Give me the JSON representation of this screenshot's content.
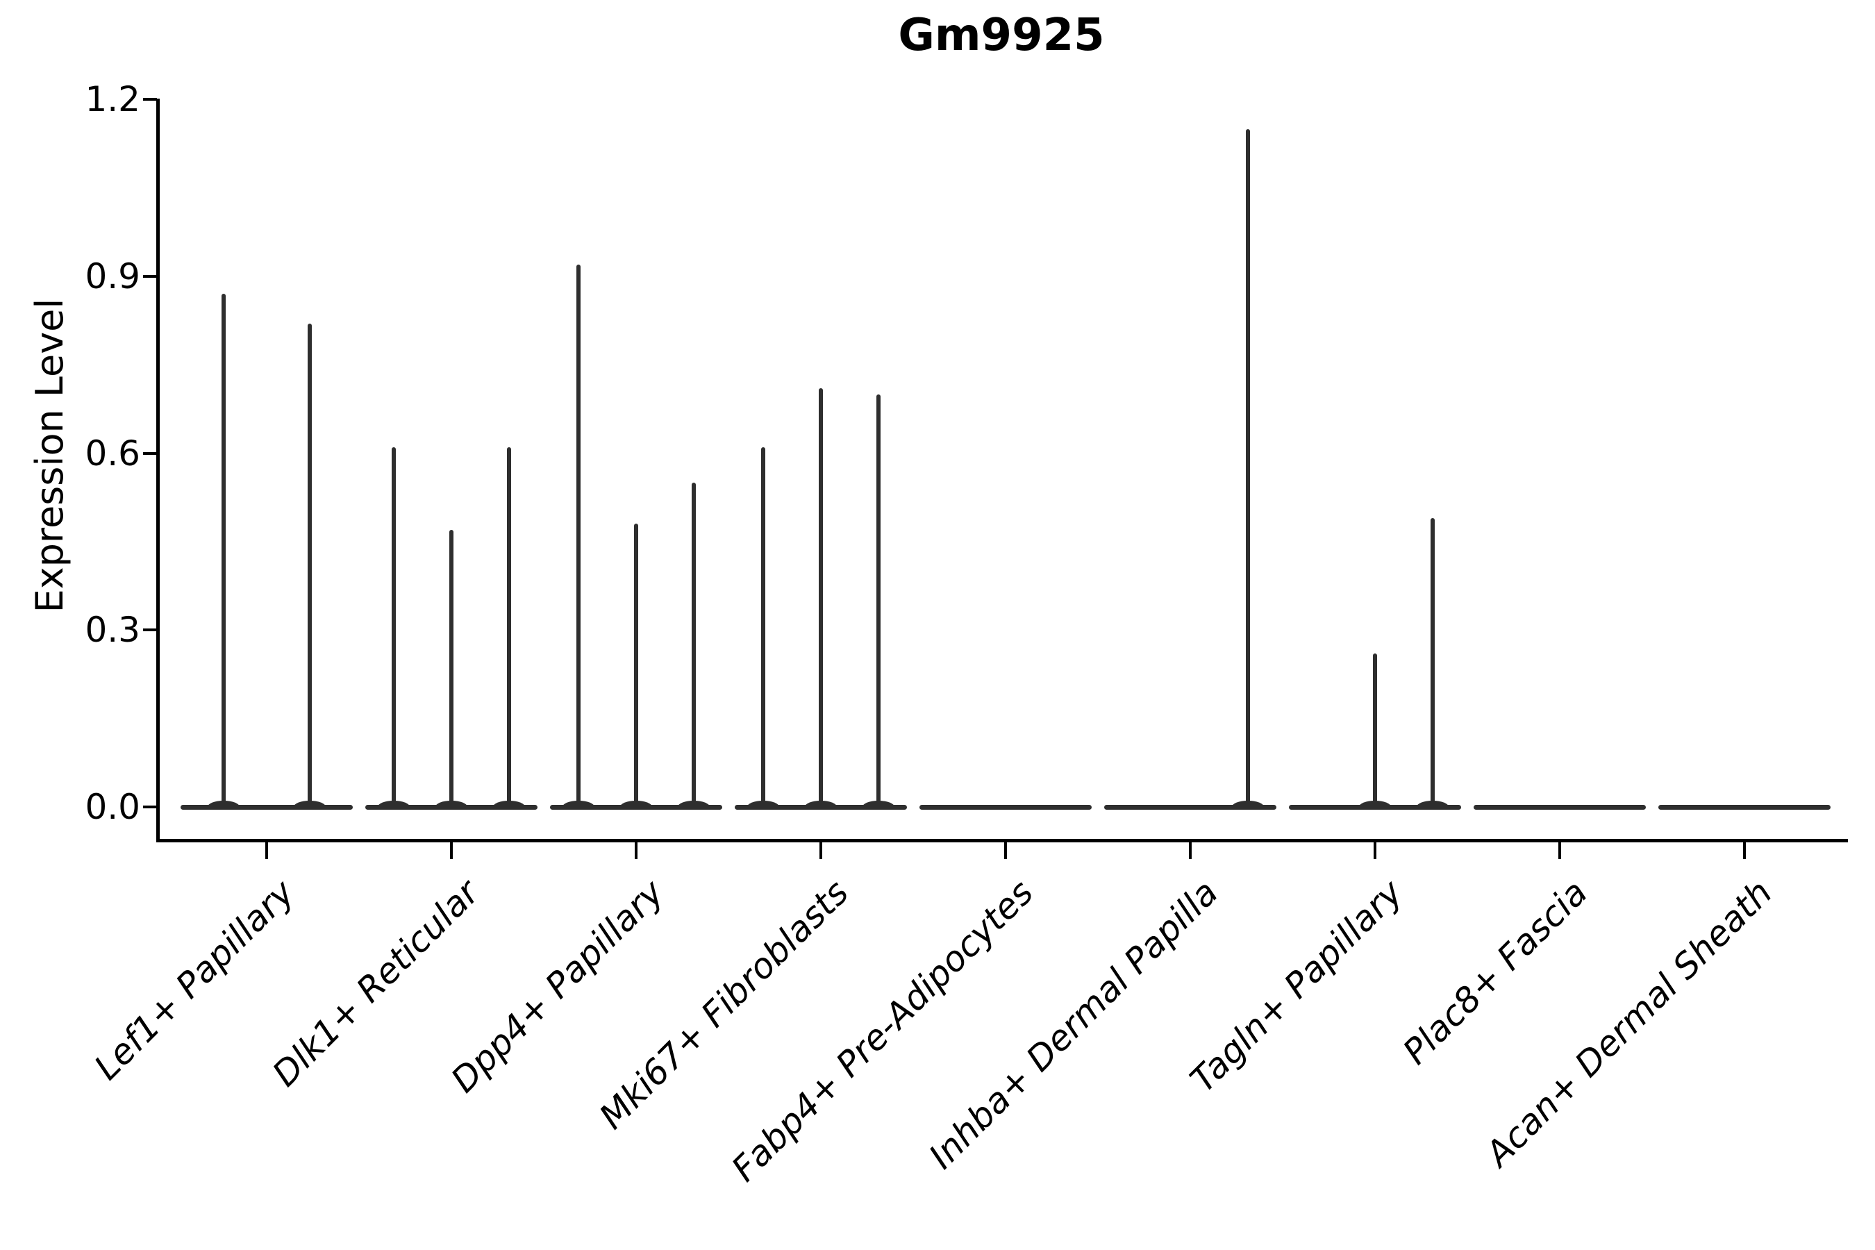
{
  "chart_data": {
    "type": "violin",
    "title": "Gm9925",
    "ylabel": "Expression Level",
    "xlabel": "",
    "ylim": [
      0,
      1.2
    ],
    "ytick_labels": [
      "0.0",
      "0.3",
      "0.6",
      "0.9",
      "1.2"
    ],
    "ytick_values": [
      0,
      0.3,
      0.6,
      0.9,
      1.2
    ],
    "grid": false,
    "legend": "none",
    "categories": [
      "Lef1+ Papillary",
      "Dlk1+ Reticular",
      "Dpp4+ Papillary",
      "Mki67+ Fibroblasts",
      "Fabp4+ Pre-Adipocytes",
      "Inhba+ Dermal Papilla",
      "Tagln+ Papillary",
      "Plac8+ Fascia",
      "Acan+ Dermal Sheath"
    ],
    "series": [
      {
        "category": "Lef1+ Papillary",
        "violin_max_values": [
          0.87,
          0.82
        ]
      },
      {
        "category": "Dlk1+ Reticular",
        "violin_max_values": [
          0.61,
          0.47,
          0.61
        ]
      },
      {
        "category": "Dpp4+ Papillary",
        "violin_max_values": [
          0.92,
          0.48,
          0.55
        ]
      },
      {
        "category": "Mki67+ Fibroblasts",
        "violin_max_values": [
          0.61,
          0.71,
          0.7
        ]
      },
      {
        "category": "Fabp4+ Pre-Adipocytes",
        "violin_max_values": [
          0,
          0,
          0
        ]
      },
      {
        "category": "Inhba+ Dermal Papilla",
        "violin_max_values": [
          0,
          0,
          1.15
        ]
      },
      {
        "category": "Tagln+ Papillary",
        "violin_max_values": [
          0,
          0.26,
          0.49
        ]
      },
      {
        "category": "Plac8+ Fascia",
        "violin_max_values": [
          0,
          0,
          0
        ]
      },
      {
        "category": "Acan+ Dermal Sheath",
        "violin_max_values": [
          0,
          0,
          0
        ]
      }
    ],
    "colors": {
      "violin_stroke": "#2e2e2e",
      "axis": "#000000",
      "background": "#ffffff",
      "text": "#000000"
    }
  }
}
